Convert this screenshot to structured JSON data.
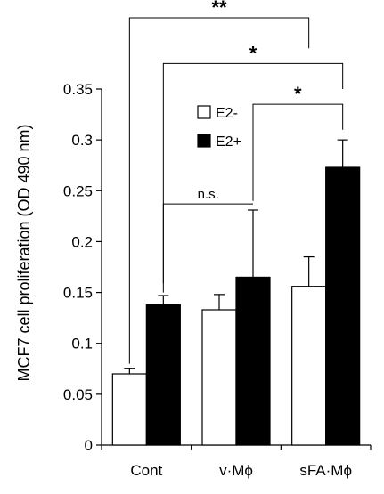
{
  "chart_data": {
    "type": "bar",
    "ylabel": "MCF7 cell proliferation (OD 490 nm)",
    "xlabel": "",
    "categories": [
      "Cont",
      "v·Mϕ",
      "sFA·Mϕ"
    ],
    "ylim": [
      0,
      0.35
    ],
    "yticks": [
      0,
      0.05,
      0.1,
      0.15,
      0.2,
      0.25,
      0.3,
      0.35
    ],
    "ytick_labels": [
      "0",
      "0.05",
      "0.1",
      "0.15",
      "0.2",
      "0.25",
      "0.3",
      "0.35"
    ],
    "series": [
      {
        "name": "E2-",
        "values": [
          0.07,
          0.133,
          0.156
        ],
        "errors": [
          0.005,
          0.015,
          0.029
        ],
        "fill": "#ffffff"
      },
      {
        "name": "E2+",
        "values": [
          0.138,
          0.165,
          0.273
        ],
        "errors": [
          0.009,
          0.066,
          0.027
        ],
        "fill": "#000000"
      }
    ],
    "legend": {
      "placement": "top-center-inside"
    },
    "grid": false,
    "annotations": [
      {
        "label": "**",
        "from": {
          "category": "Cont",
          "series": "E2-"
        },
        "to": {
          "category": "sFA·Mϕ",
          "series": "E2-"
        },
        "level": 0.42,
        "from_end": 0.08,
        "to_end": 0.39
      },
      {
        "label": "*",
        "from": {
          "category": "Cont",
          "series": "E2+"
        },
        "to": {
          "category": "sFA·Mϕ",
          "series": "E2+"
        },
        "level": 0.375,
        "from_end": 0.15,
        "to_end": 0.35
      },
      {
        "label": "*",
        "from": {
          "category": "v·Mϕ",
          "series": "E2+"
        },
        "to": {
          "category": "sFA·Mϕ",
          "series": "E2+"
        },
        "level": 0.335,
        "from_end": 0.24,
        "to_end": 0.31
      },
      {
        "label": "n.s.",
        "from": {
          "category": "Cont",
          "series": "E2+"
        },
        "to": {
          "category": "v·Mϕ",
          "series": "E2+"
        },
        "level": 0.237,
        "from_end": 0.159,
        "to_end": 0.237
      }
    ]
  }
}
